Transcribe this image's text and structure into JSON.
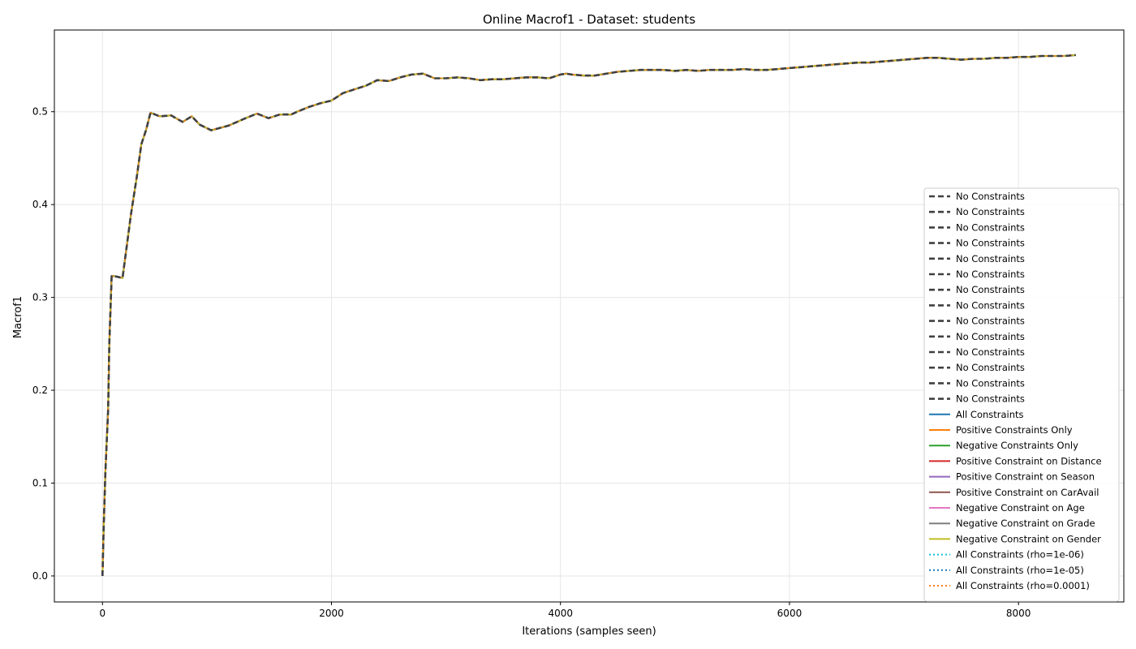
{
  "chart_data": {
    "type": "line",
    "title": "Online Macrof1 - Dataset: students",
    "xlabel": "Iterations (samples seen)",
    "ylabel": "Macrof1",
    "xlim": [
      -420,
      8920
    ],
    "ylim": [
      -0.028,
      0.588
    ],
    "xticks": [
      0,
      2000,
      4000,
      6000,
      8000
    ],
    "yticks": [
      0.0,
      0.1,
      0.2,
      0.3,
      0.4,
      0.5
    ],
    "xtick_labels": [
      "0",
      "2000",
      "4000",
      "6000",
      "8000"
    ],
    "ytick_labels": [
      "0.0",
      "0.1",
      "0.2",
      "0.3",
      "0.4",
      "0.5"
    ],
    "grid": true,
    "legend_position": "lower right",
    "x": [
      0,
      10,
      25,
      50,
      60,
      80,
      100,
      175,
      250,
      300,
      340,
      380,
      420,
      500,
      600,
      700,
      780,
      850,
      950,
      1100,
      1250,
      1350,
      1450,
      1550,
      1650,
      1700,
      1800,
      1900,
      2000,
      2100,
      2200,
      2300,
      2400,
      2500,
      2600,
      2700,
      2800,
      2900,
      3000,
      3100,
      3200,
      3300,
      3400,
      3500,
      3600,
      3700,
      3800,
      3900,
      4000,
      4050,
      4100,
      4200,
      4300,
      4400,
      4500,
      4600,
      4700,
      4800,
      4900,
      5000,
      5100,
      5200,
      5300,
      5400,
      5500,
      5600,
      5700,
      5800,
      5900,
      6000,
      6100,
      6200,
      6300,
      6400,
      6500,
      6600,
      6700,
      6800,
      6900,
      7000,
      7100,
      7200,
      7300,
      7400,
      7500,
      7600,
      7700,
      7800,
      7900,
      8000,
      8100,
      8200,
      8300,
      8400,
      8500
    ],
    "series": [
      {
        "name": "No Constraints",
        "style": "dashed",
        "color": "#404040",
        "width": 2.6,
        "values": [
          0.0,
          0.05,
          0.11,
          0.18,
          0.25,
          0.323,
          0.323,
          0.321,
          0.39,
          0.43,
          0.465,
          0.48,
          0.499,
          0.495,
          0.496,
          0.489,
          0.495,
          0.486,
          0.48,
          0.485,
          0.493,
          0.498,
          0.493,
          0.497,
          0.497,
          0.5,
          0.505,
          0.509,
          0.512,
          0.52,
          0.524,
          0.528,
          0.534,
          0.533,
          0.537,
          0.54,
          0.541,
          0.536,
          0.536,
          0.537,
          0.536,
          0.534,
          0.535,
          0.535,
          0.536,
          0.537,
          0.537,
          0.536,
          0.54,
          0.541,
          0.54,
          0.539,
          0.539,
          0.541,
          0.543,
          0.544,
          0.545,
          0.545,
          0.545,
          0.544,
          0.545,
          0.544,
          0.545,
          0.545,
          0.545,
          0.546,
          0.545,
          0.545,
          0.546,
          0.547,
          0.548,
          0.549,
          0.55,
          0.551,
          0.552,
          0.553,
          0.553,
          0.554,
          0.555,
          0.556,
          0.557,
          0.558,
          0.558,
          0.557,
          0.556,
          0.557,
          0.557,
          0.558,
          0.558,
          0.559,
          0.559,
          0.56,
          0.56,
          0.56,
          0.561
        ]
      },
      {
        "name": "All Constraints",
        "style": "solid",
        "color": "#1f77b4"
      },
      {
        "name": "Positive Constraints Only",
        "style": "solid",
        "color": "#ff7f0e"
      },
      {
        "name": "Negative Constraints Only",
        "style": "solid",
        "color": "#2ca02c"
      },
      {
        "name": "Positive Constraint on Distance",
        "style": "solid",
        "color": "#d62728"
      },
      {
        "name": "Positive Constraint on Season",
        "style": "solid",
        "color": "#9467bd"
      },
      {
        "name": "Positive Constraint on CarAvail",
        "style": "solid",
        "color": "#8c564b"
      },
      {
        "name": "Negative Constraint on Age",
        "style": "solid",
        "color": "#e377c2"
      },
      {
        "name": "Negative Constraint on Grade",
        "style": "solid",
        "color": "#7f7f7f"
      },
      {
        "name": "Negative Constraint on Gender",
        "style": "solid",
        "color": "#bcbd22"
      },
      {
        "name": "All Constraints (rho=1e-06)",
        "style": "dotted",
        "color": "#17becf"
      },
      {
        "name": "All Constraints (rho=1e-05)",
        "style": "dotted",
        "color": "#1f77b4"
      },
      {
        "name": "All Constraints (rho=0.0001)",
        "style": "dotted",
        "color": "#ff7f0e"
      }
    ],
    "legend": [
      {
        "label": "No Constraints",
        "style": "dashed",
        "color": "#404040"
      },
      {
        "label": "No Constraints",
        "style": "dashed",
        "color": "#404040"
      },
      {
        "label": "No Constraints",
        "style": "dashed",
        "color": "#404040"
      },
      {
        "label": "No Constraints",
        "style": "dashed",
        "color": "#404040"
      },
      {
        "label": "No Constraints",
        "style": "dashed",
        "color": "#404040"
      },
      {
        "label": "No Constraints",
        "style": "dashed",
        "color": "#404040"
      },
      {
        "label": "No Constraints",
        "style": "dashed",
        "color": "#404040"
      },
      {
        "label": "No Constraints",
        "style": "dashed",
        "color": "#404040"
      },
      {
        "label": "No Constraints",
        "style": "dashed",
        "color": "#404040"
      },
      {
        "label": "No Constraints",
        "style": "dashed",
        "color": "#404040"
      },
      {
        "label": "No Constraints",
        "style": "dashed",
        "color": "#404040"
      },
      {
        "label": "No Constraints",
        "style": "dashed",
        "color": "#404040"
      },
      {
        "label": "No Constraints",
        "style": "dashed",
        "color": "#404040"
      },
      {
        "label": "No Constraints",
        "style": "dashed",
        "color": "#404040"
      },
      {
        "label": "All Constraints",
        "style": "solid",
        "color": "#1f77b4"
      },
      {
        "label": "Positive Constraints Only",
        "style": "solid",
        "color": "#ff7f0e"
      },
      {
        "label": "Negative Constraints Only",
        "style": "solid",
        "color": "#2ca02c"
      },
      {
        "label": "Positive Constraint on Distance",
        "style": "solid",
        "color": "#d62728"
      },
      {
        "label": "Positive Constraint on Season",
        "style": "solid",
        "color": "#9467bd"
      },
      {
        "label": "Positive Constraint on CarAvail",
        "style": "solid",
        "color": "#8c564b"
      },
      {
        "label": "Negative Constraint on Age",
        "style": "solid",
        "color": "#e377c2"
      },
      {
        "label": "Negative Constraint on Grade",
        "style": "solid",
        "color": "#7f7f7f"
      },
      {
        "label": "Negative Constraint on Gender",
        "style": "solid",
        "color": "#bcbd22"
      },
      {
        "label": "All Constraints (rho=1e-06)",
        "style": "dotted",
        "color": "#17becf"
      },
      {
        "label": "All Constraints (rho=1e-05)",
        "style": "dotted",
        "color": "#1f77b4"
      },
      {
        "label": "All Constraints (rho=0.0001)",
        "style": "dotted",
        "color": "#ff7f0e"
      }
    ]
  }
}
